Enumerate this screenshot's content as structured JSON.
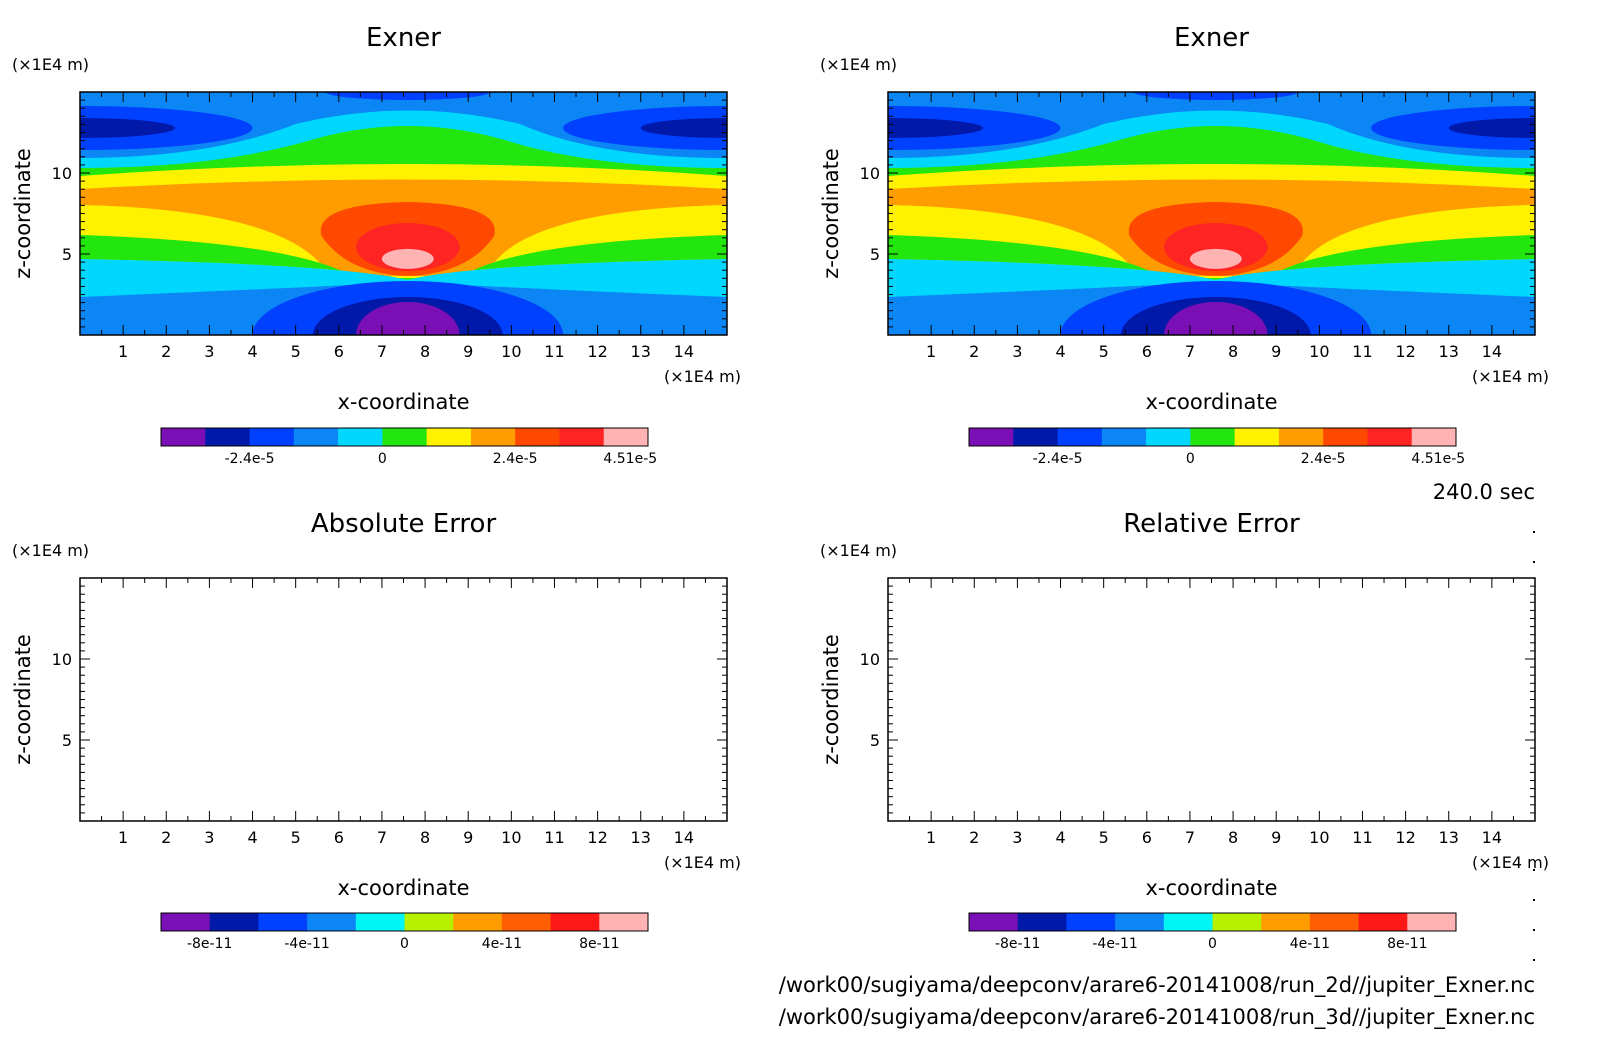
{
  "time_label": "240.0 sec",
  "file_paths": [
    "/work00/sugiyama/deepconv/arare6-20141008/run_2d//jupiter_Exner.nc",
    "/work00/sugiyama/deepconv/arare6-20141008/run_3d//jupiter_Exner.nc"
  ],
  "colors": {
    "exner_levels": [
      "#7a0fb5",
      "#0019a8",
      "#0040ff",
      "#0c86f5",
      "#00d7ff",
      "#23e60f",
      "#fff200",
      "#ff9d00",
      "#ff4800",
      "#ff2424",
      "#ffb3b3"
    ],
    "error_levels": [
      "#7a0fb5",
      "#0019a8",
      "#0040ff",
      "#0c86f5",
      "#00f5f5",
      "#b7f000",
      "#ff9d00",
      "#ff5f00",
      "#ff1818",
      "#ffb3b3"
    ]
  },
  "chart_data": [
    {
      "type": "heatmap",
      "title": "Exner",
      "xlabel": "x-coordinate",
      "ylabel": "z-coordinate",
      "x_unit": "(×1E4 m)",
      "y_unit": "(×1E4 m)",
      "xlim": [
        0,
        15
      ],
      "ylim": [
        0,
        15
      ],
      "x_ticks": [
        "1",
        "2",
        "3",
        "4",
        "5",
        "6",
        "7",
        "8",
        "9",
        "10",
        "11",
        "12",
        "13",
        "14"
      ],
      "y_ticks": [
        "5",
        "10"
      ],
      "colorbar_ticks": [
        "-2.4e-5",
        "0",
        "2.4e-5",
        "4.51e-5"
      ],
      "field_max_center": [
        7.6,
        4.7
      ]
    },
    {
      "type": "heatmap",
      "title": "Exner",
      "xlabel": "x-coordinate",
      "ylabel": "z-coordinate",
      "x_unit": "(×1E4 m)",
      "y_unit": "(×1E4 m)",
      "xlim": [
        0,
        15
      ],
      "ylim": [
        0,
        15
      ],
      "x_ticks": [
        "1",
        "2",
        "3",
        "4",
        "5",
        "6",
        "7",
        "8",
        "9",
        "10",
        "11",
        "12",
        "13",
        "14"
      ],
      "y_ticks": [
        "5",
        "10"
      ],
      "colorbar_ticks": [
        "-2.4e-5",
        "0",
        "2.4e-5",
        "4.51e-5"
      ],
      "field_max_center": [
        7.6,
        4.7
      ]
    },
    {
      "type": "heatmap",
      "title": "Absolute Error",
      "xlabel": "x-coordinate",
      "ylabel": "z-coordinate",
      "x_unit": "(×1E4 m)",
      "y_unit": "(×1E4 m)",
      "xlim": [
        0,
        15
      ],
      "ylim": [
        0,
        15
      ],
      "x_ticks": [
        "1",
        "2",
        "3",
        "4",
        "5",
        "6",
        "7",
        "8",
        "9",
        "10",
        "11",
        "12",
        "13",
        "14"
      ],
      "y_ticks": [
        "5",
        "10"
      ],
      "colorbar_ticks": [
        "-8e-11",
        "-4e-11",
        "0",
        "4e-11",
        "8e-11"
      ],
      "field": "empty"
    },
    {
      "type": "heatmap",
      "title": "Relative Error",
      "xlabel": "x-coordinate",
      "ylabel": "z-coordinate",
      "x_unit": "(×1E4 m)",
      "y_unit": "(×1E4 m)",
      "xlim": [
        0,
        15
      ],
      "ylim": [
        0,
        15
      ],
      "x_ticks": [
        "1",
        "2",
        "3",
        "4",
        "5",
        "6",
        "7",
        "8",
        "9",
        "10",
        "11",
        "12",
        "13",
        "14"
      ],
      "y_ticks": [
        "5",
        "10"
      ],
      "colorbar_ticks": [
        "-8e-11",
        "-4e-11",
        "0",
        "4e-11",
        "8e-11"
      ],
      "field": "empty"
    }
  ]
}
